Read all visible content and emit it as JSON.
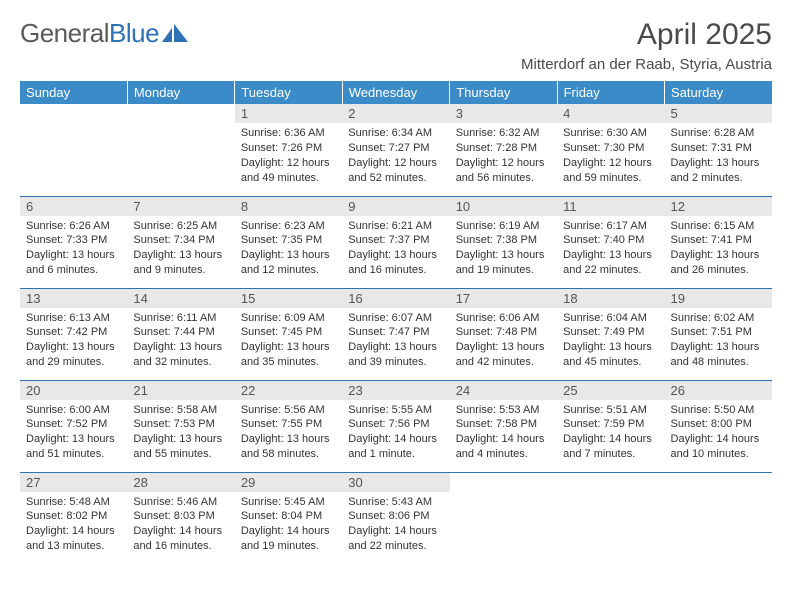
{
  "brand": {
    "part1": "General",
    "part2": "Blue"
  },
  "title": "April 2025",
  "location": "Mitterdorf an der Raab, Styria, Austria",
  "columns": [
    "Sunday",
    "Monday",
    "Tuesday",
    "Wednesday",
    "Thursday",
    "Friday",
    "Saturday"
  ],
  "colors": {
    "header_bg": "#3b8bc8",
    "header_text": "#ffffff",
    "daynum_bg": "#e8e8e8",
    "border": "#2d72b5",
    "text": "#333333"
  },
  "weeks": [
    [
      {
        "n": "",
        "sunrise": "",
        "sunset": "",
        "daylight": ""
      },
      {
        "n": "",
        "sunrise": "",
        "sunset": "",
        "daylight": ""
      },
      {
        "n": "1",
        "sunrise": "Sunrise: 6:36 AM",
        "sunset": "Sunset: 7:26 PM",
        "daylight": "Daylight: 12 hours and 49 minutes."
      },
      {
        "n": "2",
        "sunrise": "Sunrise: 6:34 AM",
        "sunset": "Sunset: 7:27 PM",
        "daylight": "Daylight: 12 hours and 52 minutes."
      },
      {
        "n": "3",
        "sunrise": "Sunrise: 6:32 AM",
        "sunset": "Sunset: 7:28 PM",
        "daylight": "Daylight: 12 hours and 56 minutes."
      },
      {
        "n": "4",
        "sunrise": "Sunrise: 6:30 AM",
        "sunset": "Sunset: 7:30 PM",
        "daylight": "Daylight: 12 hours and 59 minutes."
      },
      {
        "n": "5",
        "sunrise": "Sunrise: 6:28 AM",
        "sunset": "Sunset: 7:31 PM",
        "daylight": "Daylight: 13 hours and 2 minutes."
      }
    ],
    [
      {
        "n": "6",
        "sunrise": "Sunrise: 6:26 AM",
        "sunset": "Sunset: 7:33 PM",
        "daylight": "Daylight: 13 hours and 6 minutes."
      },
      {
        "n": "7",
        "sunrise": "Sunrise: 6:25 AM",
        "sunset": "Sunset: 7:34 PM",
        "daylight": "Daylight: 13 hours and 9 minutes."
      },
      {
        "n": "8",
        "sunrise": "Sunrise: 6:23 AM",
        "sunset": "Sunset: 7:35 PM",
        "daylight": "Daylight: 13 hours and 12 minutes."
      },
      {
        "n": "9",
        "sunrise": "Sunrise: 6:21 AM",
        "sunset": "Sunset: 7:37 PM",
        "daylight": "Daylight: 13 hours and 16 minutes."
      },
      {
        "n": "10",
        "sunrise": "Sunrise: 6:19 AM",
        "sunset": "Sunset: 7:38 PM",
        "daylight": "Daylight: 13 hours and 19 minutes."
      },
      {
        "n": "11",
        "sunrise": "Sunrise: 6:17 AM",
        "sunset": "Sunset: 7:40 PM",
        "daylight": "Daylight: 13 hours and 22 minutes."
      },
      {
        "n": "12",
        "sunrise": "Sunrise: 6:15 AM",
        "sunset": "Sunset: 7:41 PM",
        "daylight": "Daylight: 13 hours and 26 minutes."
      }
    ],
    [
      {
        "n": "13",
        "sunrise": "Sunrise: 6:13 AM",
        "sunset": "Sunset: 7:42 PM",
        "daylight": "Daylight: 13 hours and 29 minutes."
      },
      {
        "n": "14",
        "sunrise": "Sunrise: 6:11 AM",
        "sunset": "Sunset: 7:44 PM",
        "daylight": "Daylight: 13 hours and 32 minutes."
      },
      {
        "n": "15",
        "sunrise": "Sunrise: 6:09 AM",
        "sunset": "Sunset: 7:45 PM",
        "daylight": "Daylight: 13 hours and 35 minutes."
      },
      {
        "n": "16",
        "sunrise": "Sunrise: 6:07 AM",
        "sunset": "Sunset: 7:47 PM",
        "daylight": "Daylight: 13 hours and 39 minutes."
      },
      {
        "n": "17",
        "sunrise": "Sunrise: 6:06 AM",
        "sunset": "Sunset: 7:48 PM",
        "daylight": "Daylight: 13 hours and 42 minutes."
      },
      {
        "n": "18",
        "sunrise": "Sunrise: 6:04 AM",
        "sunset": "Sunset: 7:49 PM",
        "daylight": "Daylight: 13 hours and 45 minutes."
      },
      {
        "n": "19",
        "sunrise": "Sunrise: 6:02 AM",
        "sunset": "Sunset: 7:51 PM",
        "daylight": "Daylight: 13 hours and 48 minutes."
      }
    ],
    [
      {
        "n": "20",
        "sunrise": "Sunrise: 6:00 AM",
        "sunset": "Sunset: 7:52 PM",
        "daylight": "Daylight: 13 hours and 51 minutes."
      },
      {
        "n": "21",
        "sunrise": "Sunrise: 5:58 AM",
        "sunset": "Sunset: 7:53 PM",
        "daylight": "Daylight: 13 hours and 55 minutes."
      },
      {
        "n": "22",
        "sunrise": "Sunrise: 5:56 AM",
        "sunset": "Sunset: 7:55 PM",
        "daylight": "Daylight: 13 hours and 58 minutes."
      },
      {
        "n": "23",
        "sunrise": "Sunrise: 5:55 AM",
        "sunset": "Sunset: 7:56 PM",
        "daylight": "Daylight: 14 hours and 1 minute."
      },
      {
        "n": "24",
        "sunrise": "Sunrise: 5:53 AM",
        "sunset": "Sunset: 7:58 PM",
        "daylight": "Daylight: 14 hours and 4 minutes."
      },
      {
        "n": "25",
        "sunrise": "Sunrise: 5:51 AM",
        "sunset": "Sunset: 7:59 PM",
        "daylight": "Daylight: 14 hours and 7 minutes."
      },
      {
        "n": "26",
        "sunrise": "Sunrise: 5:50 AM",
        "sunset": "Sunset: 8:00 PM",
        "daylight": "Daylight: 14 hours and 10 minutes."
      }
    ],
    [
      {
        "n": "27",
        "sunrise": "Sunrise: 5:48 AM",
        "sunset": "Sunset: 8:02 PM",
        "daylight": "Daylight: 14 hours and 13 minutes."
      },
      {
        "n": "28",
        "sunrise": "Sunrise: 5:46 AM",
        "sunset": "Sunset: 8:03 PM",
        "daylight": "Daylight: 14 hours and 16 minutes."
      },
      {
        "n": "29",
        "sunrise": "Sunrise: 5:45 AM",
        "sunset": "Sunset: 8:04 PM",
        "daylight": "Daylight: 14 hours and 19 minutes."
      },
      {
        "n": "30",
        "sunrise": "Sunrise: 5:43 AM",
        "sunset": "Sunset: 8:06 PM",
        "daylight": "Daylight: 14 hours and 22 minutes."
      },
      {
        "n": "",
        "sunrise": "",
        "sunset": "",
        "daylight": ""
      },
      {
        "n": "",
        "sunrise": "",
        "sunset": "",
        "daylight": ""
      },
      {
        "n": "",
        "sunrise": "",
        "sunset": "",
        "daylight": ""
      }
    ]
  ]
}
